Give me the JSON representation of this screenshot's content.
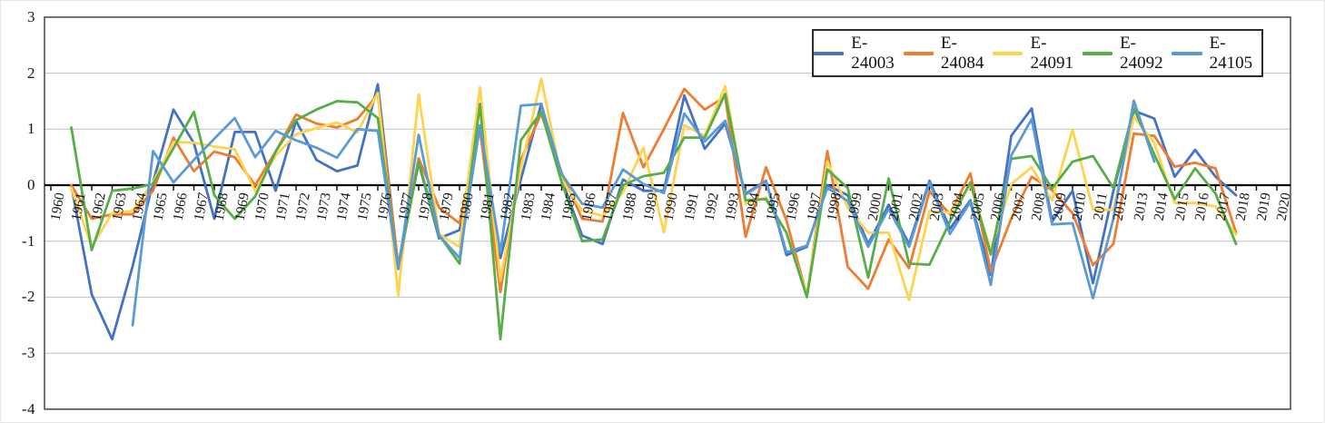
{
  "chart_data": {
    "type": "line",
    "title": "",
    "xlabel": "",
    "ylabel": "",
    "ylim": [
      -4,
      3
    ],
    "grid": true,
    "gridline_color": "#BFBFBF",
    "axis_color": "#000000",
    "legend_position": "top-right",
    "y_tick_labels": [
      "3",
      "2",
      "1",
      "0",
      "-1",
      "-2",
      "-3",
      "-4"
    ],
    "y_tick_values": [
      3,
      2,
      1,
      0,
      -1,
      -2,
      -3,
      -4
    ],
    "categories": [
      "1960",
      "1961",
      "1962",
      "1963",
      "1964",
      "1965",
      "1966",
      "1967",
      "1968",
      "1969",
      "1970",
      "1971",
      "1972",
      "1973",
      "1974",
      "1975",
      "1976",
      "1977",
      "1978",
      "1979",
      "1980",
      "1981",
      "1982",
      "1983",
      "1984",
      "1985",
      "1986",
      "1987",
      "1988",
      "1989",
      "1990",
      "1991",
      "1992",
      "1993",
      "1994",
      "1995",
      "1996",
      "1997",
      "1998",
      "1999",
      "2000",
      "2001",
      "2002",
      "2003",
      "2004",
      "2005",
      "2006",
      "2007",
      "2008",
      "2009",
      "2010",
      "2011",
      "2012",
      "2013",
      "2014",
      "2015",
      "2016",
      "2017",
      "2018",
      "2019",
      "2020"
    ],
    "series": [
      {
        "name": "E-24003",
        "color": "#4472C4",
        "values": [
          null,
          0,
          -1.95,
          -2.75,
          -1.45,
          0.05,
          1.35,
          0.75,
          -0.6,
          0.95,
          0.95,
          -0.1,
          1.15,
          0.45,
          0.25,
          0.35,
          1.8,
          -1.45,
          0.4,
          -0.95,
          -0.8,
          1.05,
          -1.3,
          0.1,
          1.45,
          0.1,
          -0.9,
          -1.05,
          0.1,
          -0.1,
          -0.1,
          1.6,
          0.65,
          1.1,
          -0.15,
          0.08,
          -1.25,
          -1.1,
          0,
          -0.18,
          -1.05,
          -0.35,
          -1.05,
          0.08,
          -0.78,
          -0.27,
          -1.6,
          0.88,
          1.37,
          -0.65,
          -0.1,
          -1.75,
          -0.1,
          1.33,
          1.19,
          0.15,
          0.63,
          0.15,
          -0.18,
          null,
          null
        ]
      },
      {
        "name": "E-24084",
        "color": "#ED7D31",
        "values": [
          null,
          0,
          -0.6,
          -0.52,
          -0.52,
          -0.1,
          0.85,
          0.25,
          0.6,
          0.5,
          0,
          0.6,
          1.26,
          1.1,
          1.03,
          1.18,
          1.62,
          -1.43,
          0.48,
          -0.4,
          -0.68,
          1,
          -1.91,
          0.45,
          1.28,
          0.22,
          -0.6,
          -0.65,
          1.29,
          0.32,
          1,
          1.72,
          1.35,
          1.58,
          -0.92,
          0.32,
          -0.63,
          -1.97,
          0.61,
          -1.46,
          -1.85,
          -0.97,
          -1.48,
          -0.11,
          -0.52,
          0.21,
          -1.54,
          -0.6,
          0.15,
          -0.09,
          -0.5,
          -1.43,
          -1.05,
          0.92,
          0.88,
          0.33,
          0.4,
          0.3,
          -0.85,
          null,
          null
        ]
      },
      {
        "name": "E-24091",
        "color": "#FFD34F",
        "values": [
          null,
          -0.05,
          -1.1,
          -0.5,
          -0.46,
          0.05,
          0.77,
          0.76,
          0.69,
          0.64,
          -0.1,
          0.53,
          0.91,
          1.02,
          1.12,
          0.94,
          1.65,
          -1.97,
          1.62,
          -0.87,
          -1.1,
          1.75,
          -1.7,
          0.3,
          1.9,
          0.1,
          -0.45,
          -0.55,
          -0.13,
          0.67,
          -0.84,
          1.07,
          0.88,
          1.77,
          -0.33,
          -0.22,
          -0.85,
          -1.95,
          0.42,
          -0.4,
          -0.85,
          -0.85,
          -2.05,
          -0.46,
          -0.49,
          0,
          -1.16,
          0.02,
          0.32,
          -0.27,
          0.99,
          -0.44,
          -0.44,
          1.22,
          0.75,
          -0.32,
          -0.32,
          -0.38,
          -0.88,
          null,
          null
        ]
      },
      {
        "name": "E-24092",
        "color": "#57AE49",
        "values": [
          null,
          1.03,
          -1.16,
          -0.1,
          -0.06,
          0.02,
          0.66,
          1.31,
          -0.18,
          -0.6,
          -0.2,
          0.6,
          1.16,
          1.35,
          1.5,
          1.48,
          1.2,
          -1.48,
          0.42,
          -0.89,
          -1.4,
          1.45,
          -2.75,
          0.8,
          1.31,
          0.05,
          -1,
          -0.97,
          0,
          0.16,
          0.22,
          0.85,
          0.85,
          1.63,
          -0.27,
          -0.25,
          -0.85,
          -2,
          0.28,
          -0.05,
          -1.65,
          0.12,
          -1.4,
          -1.42,
          -0.65,
          0.05,
          -1.24,
          0.47,
          0.52,
          -0.06,
          0.42,
          0.52,
          -0.05,
          1.37,
          0.55,
          -0.25,
          0.3,
          -0.15,
          -1.05,
          null,
          null
        ]
      },
      {
        "name": "E-24105",
        "color": "#5B9BD5",
        "values": [
          null,
          null,
          null,
          null,
          -2.5,
          0.61,
          0.05,
          0.45,
          0.83,
          1.2,
          0.5,
          0.97,
          0.8,
          0.67,
          0.49,
          1,
          0.97,
          -1.5,
          0.9,
          -0.9,
          -1.3,
          1.07,
          -1.2,
          1.42,
          1.45,
          0.2,
          -0.33,
          -0.4,
          0.28,
          0.02,
          -0.14,
          1.28,
          0.78,
          1.15,
          -0.17,
          0.07,
          -1.2,
          -1.08,
          -0.05,
          -0.28,
          -1.1,
          -0.42,
          -1.1,
          0.05,
          -0.87,
          -0.3,
          -1.78,
          0.53,
          1.18,
          -0.7,
          -0.68,
          -2.02,
          -0.6,
          1.51,
          0.42,
          null,
          null,
          null,
          null,
          null,
          null
        ]
      }
    ]
  },
  "legend": {
    "items": [
      {
        "label": "E-24003",
        "color": "#4472C4"
      },
      {
        "label": "E-24084",
        "color": "#ED7D31"
      },
      {
        "label": "E-24091",
        "color": "#FFD34F"
      },
      {
        "label": "E-24092",
        "color": "#57AE49"
      },
      {
        "label": "E-24105",
        "color": "#5B9BD5"
      }
    ]
  }
}
